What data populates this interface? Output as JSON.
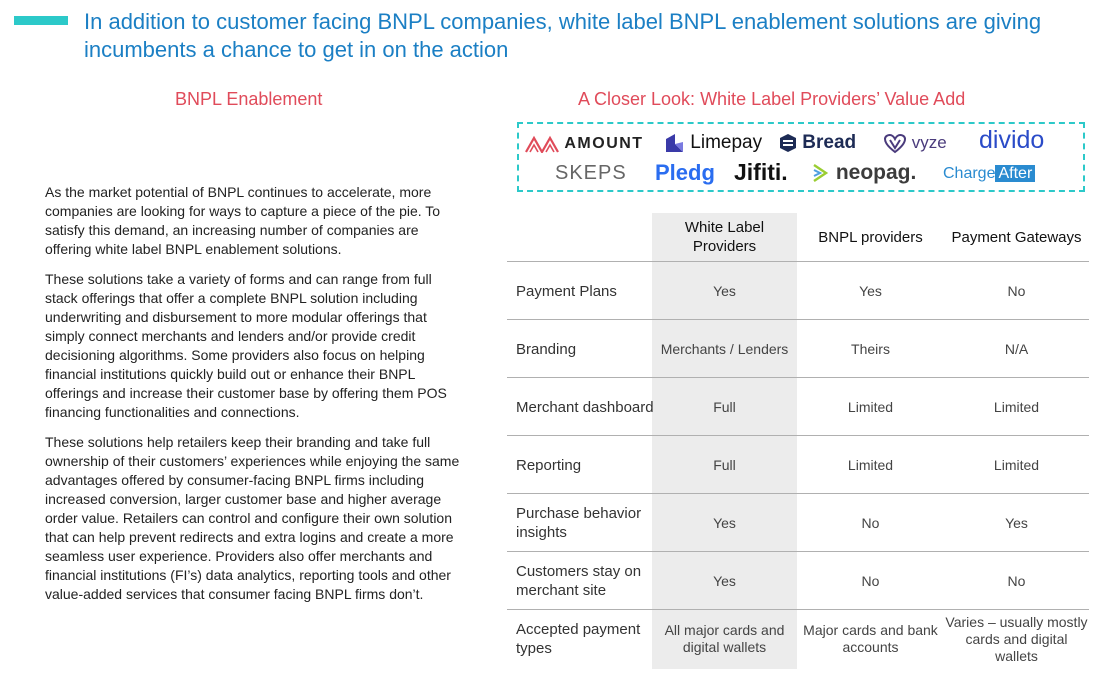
{
  "header": {
    "headline": "In addition to customer facing BNPL companies, white label BNPL enablement solutions are giving incumbents a chance to get in on the action"
  },
  "left_section": {
    "title": "BNPL Enablement",
    "paragraphs": [
      "As the market potential of BNPL continues to accelerate, more companies are looking for ways to capture a piece of the pie. To satisfy this demand, an increasing number of companies are offering white label BNPL enablement solutions.",
      "These solutions take a variety of forms and can range from full stack offerings that offer a complete BNPL solution including underwriting and disbursement to more modular offerings that simply connect merchants and lenders and/or provide credit decisioning algorithms. Some providers also focus on helping financial institutions quickly build out or enhance their BNPL offerings and increase their customer base by offering them POS financing functionalities and connections.",
      "These solutions help retailers keep their branding and take full ownership of their customers’ experiences while enjoying the same advantages offered by consumer-facing BNPL firms including increased conversion, larger customer base and higher average order value. Retailers can control and configure their own solution that can help prevent redirects and extra logins and create a more seamless user experience. Providers also offer merchants and financial institutions (FI’s) data analytics, reporting tools and other value-added services that consumer facing BNPL firms don’t."
    ]
  },
  "right_section": {
    "title": "A Closer Look: White Label Providers’ Value Add",
    "logos": {
      "amount": "AMOUNT",
      "limepay": "Limepay",
      "bread": "Bread",
      "vyze": "vyze",
      "divido": "divido",
      "skeps": "SKEPS",
      "pledg": "Pledg",
      "jifiti": "Jifiti.",
      "neopag": "neopag.",
      "chargeafter_1": "Charge",
      "chargeafter_2": "After"
    },
    "table": {
      "columns": [
        "White Label Providers",
        "BNPL providers",
        "Payment Gateways"
      ],
      "rows": [
        {
          "label": "Payment Plans",
          "values": [
            "Yes",
            "Yes",
            "No"
          ]
        },
        {
          "label": "Branding",
          "values": [
            "Merchants / Lenders",
            "Theirs",
            "N/A"
          ]
        },
        {
          "label": "Merchant dashboard",
          "values": [
            "Full",
            "Limited",
            "Limited"
          ]
        },
        {
          "label": "Reporting",
          "values": [
            "Full",
            "Limited",
            "Limited"
          ]
        },
        {
          "label": "Purchase behavior insights",
          "values": [
            "Yes",
            "No",
            "Yes"
          ]
        },
        {
          "label": "Customers stay on merchant site",
          "values": [
            "Yes",
            "No",
            "No"
          ]
        },
        {
          "label": "Accepted payment types",
          "values": [
            "All major cards and digital wallets",
            "Major cards and bank accounts",
            "Varies – usually mostly cards and digital wallets"
          ]
        }
      ]
    }
  },
  "colors": {
    "accent_teal": "#2cc9c9",
    "headline_blue": "#1b7fc4",
    "section_title_red": "#e04b5a",
    "highlight_column_gray": "#ececec"
  }
}
